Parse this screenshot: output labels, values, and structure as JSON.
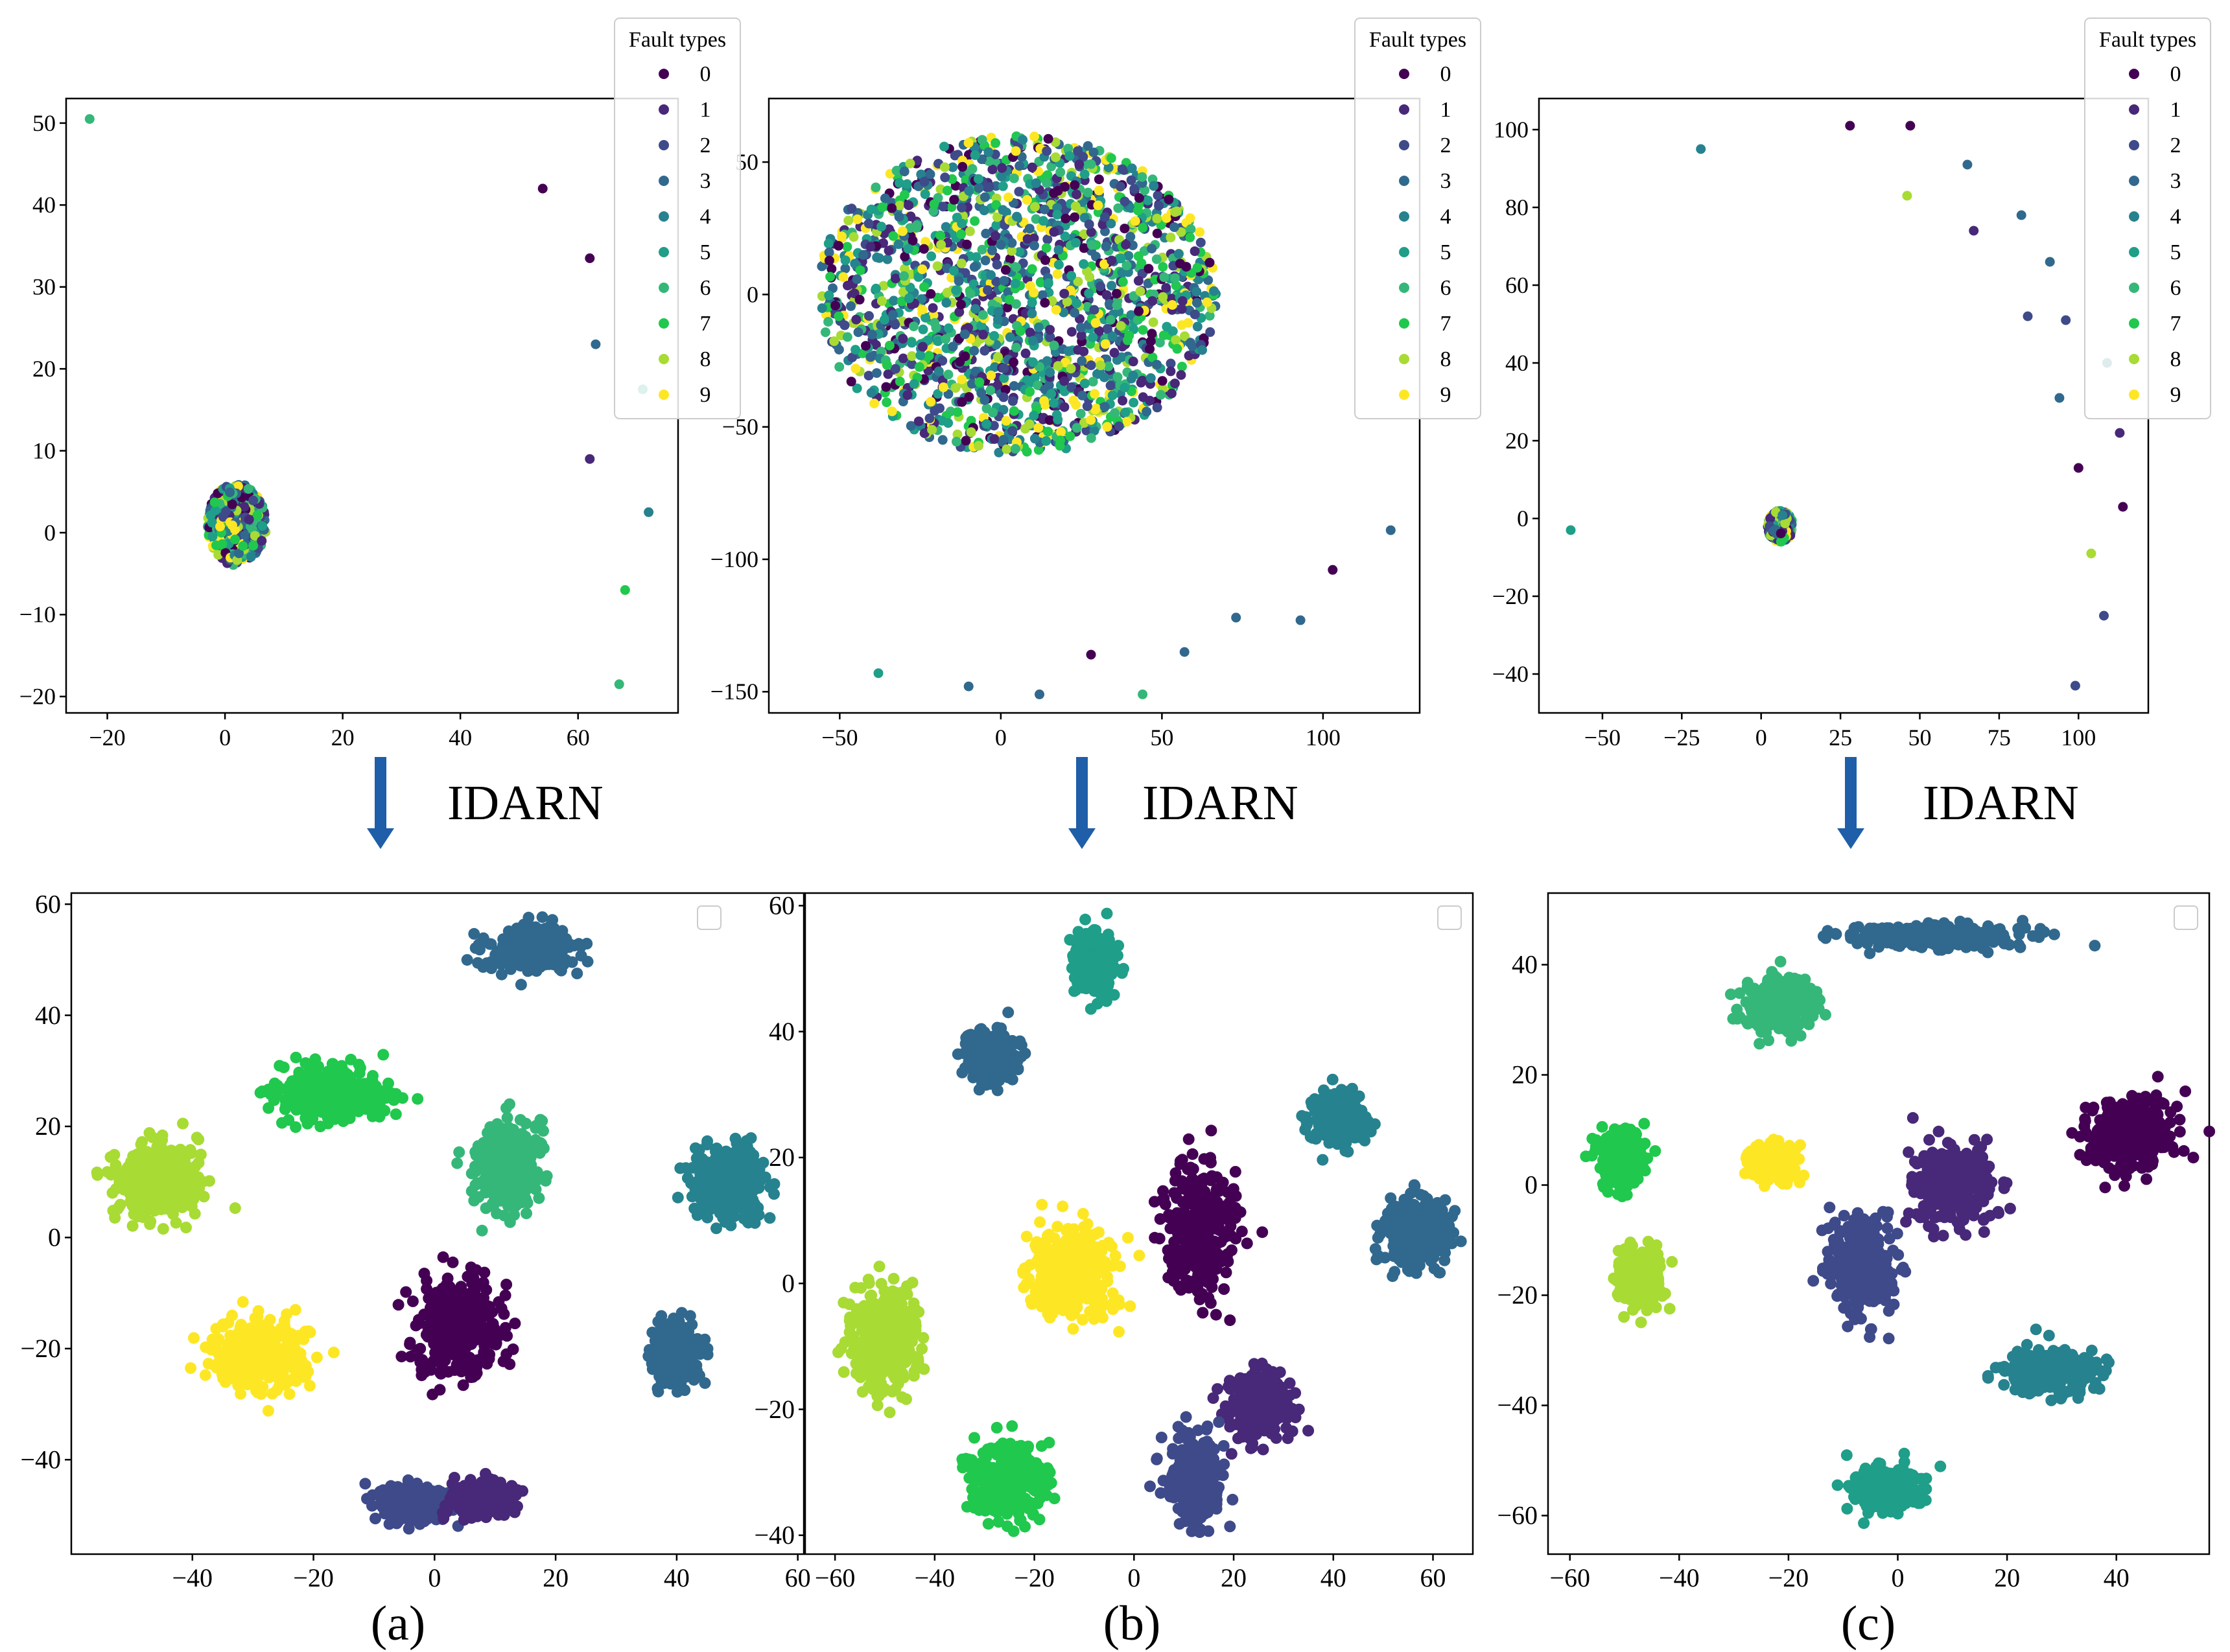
{
  "arrow_label": "IDARN",
  "legend_title": "Fault types",
  "class_labels": [
    "0",
    "1",
    "2",
    "3",
    "4",
    "5",
    "6",
    "7",
    "8",
    "9"
  ],
  "colors": [
    "#440154",
    "#482878",
    "#3e4a89",
    "#31688e",
    "#26828e",
    "#1f9e89",
    "#35b779",
    "#20c84d",
    "#a8db34",
    "#fde725"
  ],
  "panels": [
    {
      "label": "(a)"
    },
    {
      "label": "(b)"
    },
    {
      "label": "(c)"
    }
  ],
  "chart_data": [
    {
      "type": "scatter",
      "title": "",
      "panel": "(a)",
      "row": "before",
      "xlim": [
        -27,
        77
      ],
      "ylim": [
        -22,
        53
      ],
      "xticks": [
        -20,
        0,
        20,
        40,
        60
      ],
      "yticks": [
        -20,
        -10,
        0,
        10,
        20,
        30,
        40,
        50
      ],
      "legend": {
        "title": "Fault types",
        "placement": "top-right"
      },
      "clusters": [
        {
          "center": [
            2,
            1
          ],
          "radius": [
            5,
            5
          ],
          "classes": "all",
          "n": 420
        }
      ],
      "outliers": [
        [
          -23,
          50.5,
          6
        ],
        [
          54,
          42,
          0
        ],
        [
          62,
          33.5,
          0
        ],
        [
          63,
          23,
          3
        ],
        [
          71,
          17.5,
          5
        ],
        [
          62,
          9,
          1
        ],
        [
          72,
          2.5,
          4
        ],
        [
          68,
          -7,
          7
        ],
        [
          67,
          -18.5,
          6
        ]
      ]
    },
    {
      "type": "scatter",
      "title": "",
      "panel": "(b)",
      "row": "before",
      "xlim": [
        -72,
        130
      ],
      "ylim": [
        -158,
        74
      ],
      "xticks": [
        -50,
        0,
        50,
        100
      ],
      "yticks": [
        -150,
        -100,
        -50,
        0,
        50
      ],
      "legend": {
        "title": "Fault types",
        "placement": "top-right"
      },
      "clusters": [
        {
          "center": [
            5,
            0
          ],
          "radius": [
            62,
            60
          ],
          "classes": "all",
          "n": 1800
        }
      ],
      "outliers": [
        [
          -38,
          -143,
          5
        ],
        [
          -10,
          -148,
          3
        ],
        [
          12,
          -151,
          3
        ],
        [
          28,
          -136,
          0
        ],
        [
          44,
          -151,
          6
        ],
        [
          57,
          -135,
          3
        ],
        [
          73,
          -122,
          3
        ],
        [
          93,
          -123,
          3
        ],
        [
          103,
          -104,
          0
        ],
        [
          121,
          -89,
          3
        ]
      ]
    },
    {
      "type": "scatter",
      "title": "",
      "panel": "(c)",
      "row": "before",
      "xlim": [
        -70,
        122
      ],
      "ylim": [
        -50,
        108
      ],
      "xticks": [
        -50,
        -25,
        0,
        25,
        50,
        75,
        100
      ],
      "yticks": [
        -40,
        -20,
        0,
        20,
        40,
        60,
        80,
        100
      ],
      "legend": {
        "title": "Fault types",
        "placement": "top-right"
      },
      "clusters": [
        {
          "center": [
            6,
            -2
          ],
          "radius": [
            4,
            4
          ],
          "classes": "all",
          "n": 300
        }
      ],
      "outliers": [
        [
          -19,
          95,
          4
        ],
        [
          28,
          101,
          0
        ],
        [
          47,
          101,
          0
        ],
        [
          46,
          83,
          8
        ],
        [
          65,
          91,
          3
        ],
        [
          67,
          74,
          1
        ],
        [
          82,
          78,
          3
        ],
        [
          91,
          66,
          3
        ],
        [
          84,
          52,
          2
        ],
        [
          96,
          51,
          2
        ],
        [
          94,
          31,
          3
        ],
        [
          109,
          40,
          4
        ],
        [
          100,
          13,
          0
        ],
        [
          113,
          22,
          1
        ],
        [
          114,
          3,
          0
        ],
        [
          104,
          -9,
          8
        ],
        [
          108,
          -25,
          2
        ],
        [
          99,
          -43,
          2
        ],
        [
          -60,
          -3,
          5
        ]
      ]
    },
    {
      "type": "scatter",
      "title": "",
      "panel": "(a)",
      "row": "after",
      "xlim": [
        -60,
        61
      ],
      "ylim": [
        -57,
        62
      ],
      "xticks": [
        -40,
        -20,
        0,
        20,
        40,
        60
      ],
      "yticks": [
        -40,
        -20,
        0,
        20,
        40,
        60
      ],
      "legend": {
        "title": "",
        "placement": "top-right"
      },
      "clusters": [
        {
          "class": 3,
          "center": [
            16,
            52
          ],
          "radius": [
            7,
            4
          ]
        },
        {
          "class": 7,
          "center": [
            -17,
            26
          ],
          "radius": [
            9,
            5
          ]
        },
        {
          "class": 6,
          "center": [
            12,
            13
          ],
          "radius": [
            5,
            8
          ]
        },
        {
          "class": 8,
          "center": [
            -46,
            10
          ],
          "radius": [
            7,
            7
          ]
        },
        {
          "class": 4,
          "center": [
            49,
            10
          ],
          "radius": [
            6,
            6
          ]
        },
        {
          "class": 0,
          "center": [
            4,
            -16
          ],
          "radius": [
            7,
            9
          ]
        },
        {
          "class": 3,
          "center": [
            40,
            -21
          ],
          "radius": [
            4,
            5
          ]
        },
        {
          "class": 9,
          "center": [
            -29,
            -21
          ],
          "radius": [
            8,
            6
          ]
        },
        {
          "class": 2,
          "center": [
            -4,
            -48
          ],
          "radius": [
            5,
            3
          ]
        },
        {
          "class": 1,
          "center": [
            8,
            -47
          ],
          "radius": [
            5,
            3
          ]
        }
      ]
    },
    {
      "type": "scatter",
      "title": "",
      "panel": "(b)",
      "row": "after",
      "xlim": [
        -66,
        68
      ],
      "ylim": [
        -43,
        62
      ],
      "xticks": [
        -60,
        -40,
        -20,
        0,
        20,
        40,
        60
      ],
      "yticks": [
        -40,
        -20,
        0,
        20,
        40,
        60
      ],
      "legend": {
        "title": "",
        "placement": "top-right"
      },
      "clusters": [
        {
          "class": 5,
          "center": [
            -8,
            51
          ],
          "radius": [
            4,
            5
          ]
        },
        {
          "class": 3,
          "center": [
            -29,
            36
          ],
          "radius": [
            5,
            4
          ]
        },
        {
          "class": 4,
          "center": [
            41,
            26
          ],
          "radius": [
            5,
            4
          ]
        },
        {
          "class": 0,
          "center": [
            13,
            8
          ],
          "radius": [
            7,
            10
          ]
        },
        {
          "class": 3,
          "center": [
            57,
            8
          ],
          "radius": [
            7,
            5
          ]
        },
        {
          "class": 9,
          "center": [
            -13,
            2
          ],
          "radius": [
            9,
            7
          ]
        },
        {
          "class": 8,
          "center": [
            -50,
            -9
          ],
          "radius": [
            7,
            8
          ]
        },
        {
          "class": 1,
          "center": [
            25,
            -19
          ],
          "radius": [
            6,
            5
          ]
        },
        {
          "class": 2,
          "center": [
            12,
            -31
          ],
          "radius": [
            5,
            7
          ]
        },
        {
          "class": 7,
          "center": [
            -26,
            -31
          ],
          "radius": [
            8,
            6
          ]
        }
      ]
    },
    {
      "type": "scatter",
      "title": "",
      "panel": "(c)",
      "row": "after",
      "xlim": [
        -64,
        57
      ],
      "ylim": [
        -67,
        53
      ],
      "xticks": [
        -60,
        -40,
        -20,
        0,
        20,
        40
      ],
      "yticks": [
        -60,
        -40,
        -20,
        0,
        20,
        40
      ],
      "legend": {
        "title": "",
        "placement": "top-right"
      },
      "clusters": [
        {
          "class": 3,
          "center": [
            6,
            45
          ],
          "radius": [
            16,
            2
          ]
        },
        {
          "class": 6,
          "center": [
            -22,
            33
          ],
          "radius": [
            6,
            5
          ]
        },
        {
          "class": 0,
          "center": [
            42,
            9
          ],
          "radius": [
            8,
            7
          ]
        },
        {
          "class": 7,
          "center": [
            -51,
            5
          ],
          "radius": [
            4,
            5
          ]
        },
        {
          "class": 9,
          "center": [
            -23,
            4
          ],
          "radius": [
            4,
            3
          ]
        },
        {
          "class": 1,
          "center": [
            10,
            0
          ],
          "radius": [
            7,
            7
          ]
        },
        {
          "class": 8,
          "center": [
            -47,
            -17
          ],
          "radius": [
            4,
            5
          ]
        },
        {
          "class": 2,
          "center": [
            -7,
            -15
          ],
          "radius": [
            6,
            8
          ]
        },
        {
          "class": 4,
          "center": [
            28,
            -34
          ],
          "radius": [
            8,
            4
          ]
        },
        {
          "class": 5,
          "center": [
            -2,
            -55
          ],
          "radius": [
            6,
            4
          ]
        }
      ]
    }
  ]
}
